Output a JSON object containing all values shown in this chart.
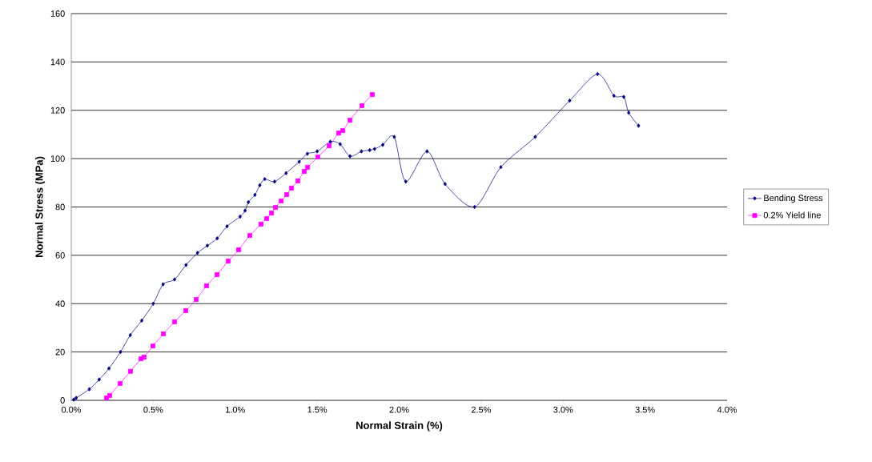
{
  "chart_data": {
    "type": "line",
    "xlabel": "Normal Strain (%)",
    "ylabel": "Normal Stress (MPa)",
    "xlim": [
      0,
      4
    ],
    "ylim": [
      0,
      160
    ],
    "xticks": [
      {
        "value": 0,
        "label": "0.0%"
      },
      {
        "value": 0.5,
        "label": "0.5%"
      },
      {
        "value": 1,
        "label": "1.0%"
      },
      {
        "value": 1.5,
        "label": "1.5%"
      },
      {
        "value": 2,
        "label": "2.0%"
      },
      {
        "value": 2.5,
        "label": "2.5%"
      },
      {
        "value": 3,
        "label": "3.0%"
      },
      {
        "value": 3.5,
        "label": "3.5%"
      },
      {
        "value": 4,
        "label": "4.0%"
      }
    ],
    "yticks": [
      0,
      20,
      40,
      60,
      80,
      100,
      120,
      140,
      160
    ],
    "grid": "y",
    "legend": "right",
    "series": [
      {
        "name": "Bending Stress",
        "color": "#000080",
        "marker": "diamond",
        "x": [
          0.015,
          0.03,
          0.11,
          0.17,
          0.23,
          0.3,
          0.36,
          0.43,
          0.5,
          0.56,
          0.63,
          0.7,
          0.77,
          0.83,
          0.89,
          0.95,
          1.03,
          1.06,
          1.08,
          1.12,
          1.15,
          1.18,
          1.24,
          1.31,
          1.39,
          1.44,
          1.5,
          1.58,
          1.64,
          1.7,
          1.77,
          1.82,
          1.85,
          1.9,
          1.97,
          2.04,
          2.17,
          2.28,
          2.46,
          2.62,
          2.83,
          3.04,
          3.21,
          3.31,
          3.37,
          3.4,
          3.46
        ],
        "values": [
          0.3,
          1,
          4.6,
          8.6,
          13.2,
          20,
          27,
          33,
          40,
          48,
          50,
          56,
          61,
          64,
          67,
          72,
          76,
          78.5,
          82,
          85,
          89,
          91.5,
          90.5,
          94,
          98.7,
          102,
          103,
          107,
          106,
          101,
          103,
          103.5,
          104,
          105.7,
          109,
          90.5,
          103,
          89.5,
          80,
          96.5,
          109,
          124,
          135,
          126,
          125.5,
          119,
          113.6
        ]
      },
      {
        "name": "0.2% Yield line",
        "color": "#ff00ff",
        "marker": "square",
        "x": [
          0.215,
          0.234,
          0.298,
          0.361,
          0.425,
          0.444,
          0.498,
          0.562,
          0.63,
          0.698,
          0.762,
          0.825,
          0.889,
          0.957,
          1.021,
          1.089,
          1.157,
          1.192,
          1.221,
          1.245,
          1.28,
          1.314,
          1.343,
          1.382,
          1.421,
          1.441,
          1.504,
          1.573,
          1.631,
          1.656,
          1.7,
          1.773,
          1.836
        ],
        "values": [
          1.0,
          2.0,
          7.0,
          12.0,
          17.2,
          17.9,
          22.5,
          27.5,
          32.5,
          37.1,
          41.7,
          47.4,
          52.0,
          57.6,
          62.3,
          68.2,
          72.9,
          75.2,
          77.5,
          79.8,
          82.5,
          85.1,
          87.8,
          90.8,
          94.7,
          96.4,
          100.7,
          105.3,
          110.6,
          111.6,
          115.9,
          121.9,
          126.5
        ]
      }
    ]
  }
}
